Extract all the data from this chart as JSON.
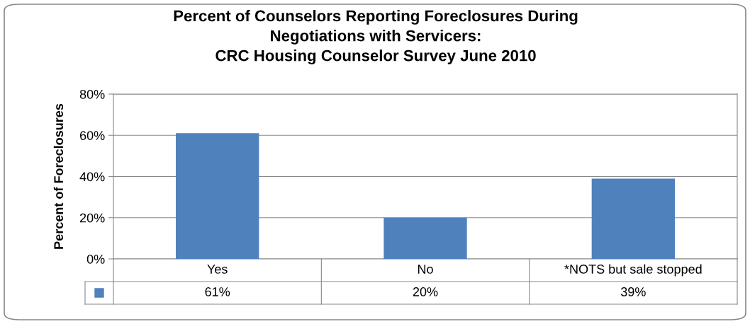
{
  "chart_data": {
    "type": "bar",
    "title": "Percent of Counselors Reporting Foreclosures During\nNegotiations with Servicers:\nCRC Housing Counselor Survey June 2010",
    "ylabel": "Percent of Foreclosures",
    "categories": [
      "Yes",
      "No",
      "*NOTS but sale stopped"
    ],
    "series": [
      {
        "color": "#4f81bd",
        "values": [
          61,
          20,
          39
        ]
      }
    ],
    "ylim": [
      0,
      80
    ],
    "yticks": [
      {
        "value": 0,
        "label": "0%"
      },
      {
        "value": 20,
        "label": "20%"
      },
      {
        "value": 40,
        "label": "40%"
      },
      {
        "value": 60,
        "label": "60%"
      },
      {
        "value": 80,
        "label": "80%"
      }
    ],
    "value_labels": [
      "61%",
      "20%",
      "39%"
    ],
    "grid": "y"
  }
}
